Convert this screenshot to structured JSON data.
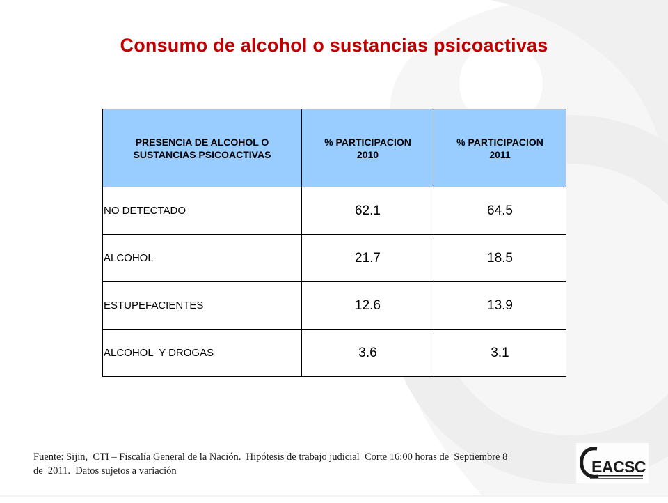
{
  "title": "Consumo de alcohol o sustancias psicoactivas",
  "table": {
    "headers": [
      "PRESENCIA DE ALCOHOL O\nSUSTANCIAS PSICOACTIVAS",
      "% PARTICIPACION\n2010",
      "% PARTICIPACION\n2011"
    ],
    "rows": [
      {
        "label": "NO DETECTADO",
        "v2010": "62.1",
        "v2011": "64.5"
      },
      {
        "label": "ALCOHOL",
        "v2010": "21.7",
        "v2011": "18.5"
      },
      {
        "label": "ESTUPEFACIENTES",
        "v2010": "12.6",
        "v2011": "13.9"
      },
      {
        "label": "ALCOHOL  Y DROGAS",
        "v2010": "3.6",
        "v2011": "3.1"
      }
    ]
  },
  "footer": {
    "source_line1": "Fuente: Sijin,  CTI – Fiscalía General de la Nación.  Hipótesis de trabajo judicial  Corte 16:00 horas de  Septiembre 8",
    "source_line2": "de  2011.  Datos sujetos a variación"
  },
  "logo": {
    "text": "CEACSC",
    "color": "#1a1a1a"
  },
  "colors": {
    "title": "#c00000",
    "header_bg": "#99ccff",
    "background_mark": "#f2f2f2"
  }
}
